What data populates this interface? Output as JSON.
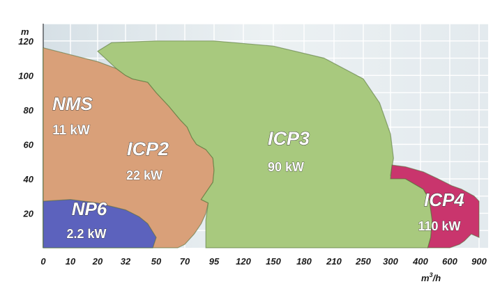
{
  "chart_data": {
    "type": "area",
    "title": "",
    "xlabel": "m³/h",
    "ylabel": "m",
    "x_unit_main": "m",
    "x_unit_sup": "3",
    "x_unit_tail": "/h",
    "y_unit": "m",
    "x_scale": "non-linear",
    "x_ticks": [
      "0",
      "10",
      "20",
      "32",
      "50",
      "70",
      "95",
      "120",
      "150",
      "180",
      "210",
      "250",
      "300",
      "400",
      "600",
      "900"
    ],
    "y_ticks": [
      "20",
      "40",
      "60",
      "80",
      "100",
      "120"
    ],
    "ylim": [
      0,
      130
    ],
    "grid": true,
    "series": [
      {
        "name": "NMS",
        "power": "11 kW",
        "color": "#8f959c",
        "polygon": [
          [
            0,
            0
          ],
          [
            0,
            115
          ],
          [
            7,
            113
          ],
          [
            11,
            106
          ],
          [
            15,
            92
          ],
          [
            13,
            80
          ],
          [
            12,
            62
          ],
          [
            10,
            48
          ],
          [
            7,
            44
          ],
          [
            0,
            44
          ]
        ]
      },
      {
        "name": "ICP2",
        "power": "22 kW",
        "color": "#d9a079",
        "polygon": [
          [
            0,
            0
          ],
          [
            0,
            116
          ],
          [
            10,
            112
          ],
          [
            20,
            108
          ],
          [
            28,
            104
          ],
          [
            32,
            100
          ],
          [
            36,
            98
          ],
          [
            45,
            96
          ],
          [
            50,
            90
          ],
          [
            59,
            82
          ],
          [
            67,
            74
          ],
          [
            72,
            70
          ],
          [
            76,
            64
          ],
          [
            80,
            60
          ],
          [
            88,
            57
          ],
          [
            94,
            52
          ],
          [
            95,
            45
          ],
          [
            94,
            38
          ],
          [
            88,
            32
          ],
          [
            84,
            28
          ],
          [
            90,
            26
          ],
          [
            88,
            20
          ],
          [
            84,
            14
          ],
          [
            78,
            8
          ],
          [
            70,
            2
          ],
          [
            65,
            0
          ]
        ]
      },
      {
        "name": "ICP3",
        "power": "90 kW",
        "color": "#a8c97e",
        "polygon": [
          [
            20,
            114
          ],
          [
            26,
            119
          ],
          [
            50,
            120
          ],
          [
            95,
            120
          ],
          [
            150,
            117
          ],
          [
            200,
            110
          ],
          [
            250,
            98
          ],
          [
            280,
            84
          ],
          [
            300,
            66
          ],
          [
            310,
            52
          ],
          [
            300,
            42
          ],
          [
            350,
            40
          ],
          [
            420,
            34
          ],
          [
            460,
            28
          ],
          [
            480,
            16
          ],
          [
            470,
            6
          ],
          [
            450,
            0
          ],
          [
            88,
            0
          ],
          [
            88,
            16
          ],
          [
            90,
            26
          ],
          [
            84,
            28
          ],
          [
            88,
            32
          ],
          [
            94,
            38
          ],
          [
            95,
            45
          ],
          [
            94,
            52
          ],
          [
            88,
            57
          ],
          [
            80,
            60
          ],
          [
            76,
            64
          ],
          [
            72,
            70
          ],
          [
            67,
            74
          ],
          [
            59,
            82
          ],
          [
            50,
            90
          ],
          [
            45,
            96
          ],
          [
            36,
            98
          ],
          [
            32,
            100
          ],
          [
            28,
            104
          ]
        ]
      },
      {
        "name": "ICP4",
        "power": "110 kW",
        "color": "#c9356d",
        "polygon": [
          [
            300,
            40
          ],
          [
            305,
            48
          ],
          [
            350,
            47
          ],
          [
            420,
            44
          ],
          [
            520,
            40
          ],
          [
            620,
            36
          ],
          [
            720,
            34
          ],
          [
            850,
            30
          ],
          [
            900,
            27
          ],
          [
            900,
            6
          ],
          [
            820,
            8
          ],
          [
            750,
            4
          ],
          [
            700,
            2
          ],
          [
            600,
            0
          ],
          [
            450,
            0
          ],
          [
            470,
            6
          ],
          [
            480,
            16
          ],
          [
            460,
            28
          ],
          [
            420,
            34
          ],
          [
            350,
            40
          ]
        ]
      },
      {
        "name": "NP6",
        "power": "2.2 kW",
        "color": "#5c62bd",
        "polygon": [
          [
            0,
            0
          ],
          [
            0,
            27
          ],
          [
            10,
            28
          ],
          [
            20,
            26
          ],
          [
            32,
            22
          ],
          [
            40,
            18
          ],
          [
            45,
            14
          ],
          [
            50,
            6
          ],
          [
            48,
            0
          ]
        ]
      }
    ]
  }
}
